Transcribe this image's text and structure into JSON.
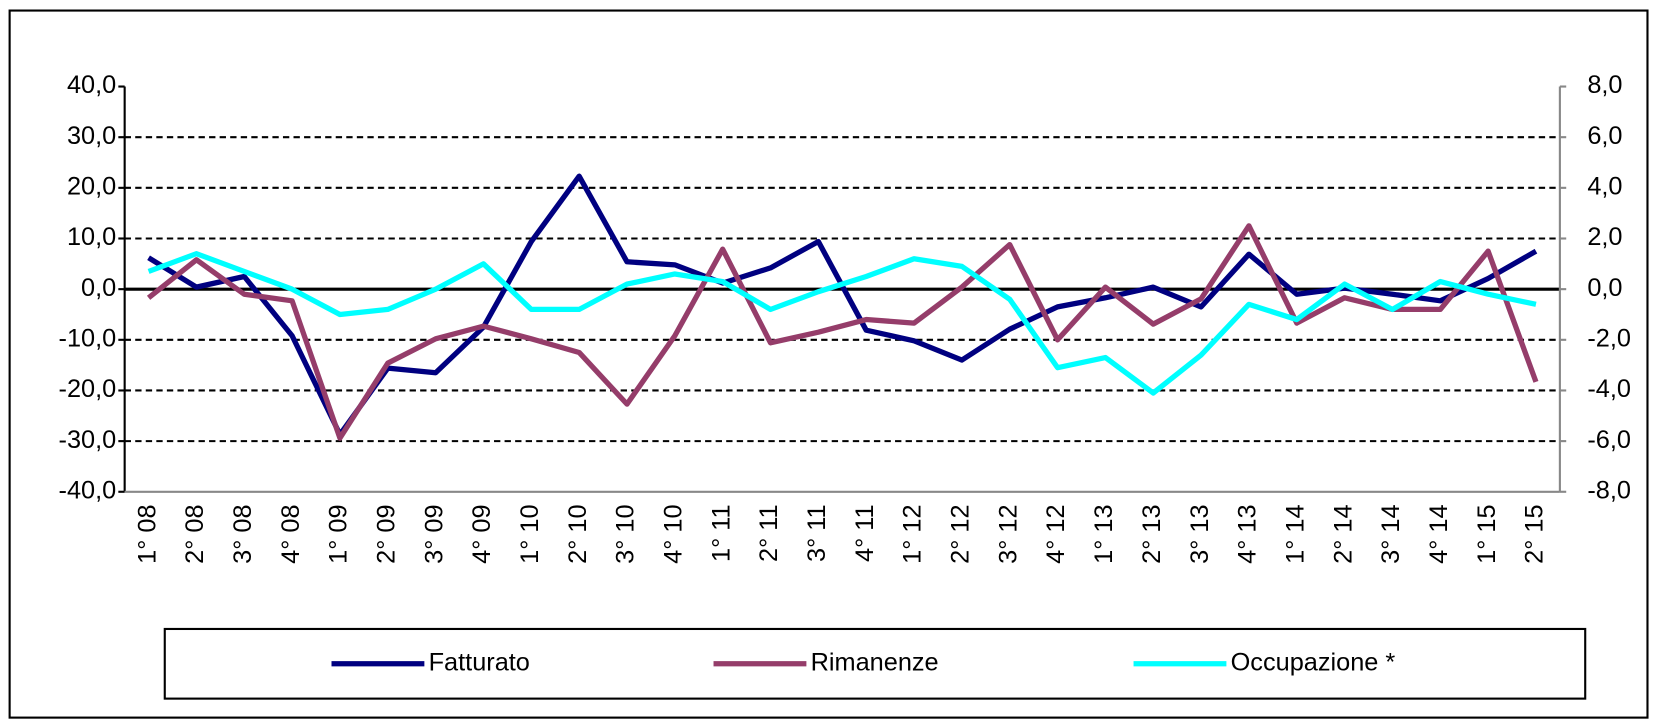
{
  "chart_data": {
    "type": "line",
    "categories": [
      "1° 08",
      "2° 08",
      "3° 08",
      "4° 08",
      "1° 09",
      "2° 09",
      "3° 09",
      "4° 09",
      "1° 10",
      "2° 10",
      "3° 10",
      "4° 10",
      "1° 11",
      "2° 11",
      "3° 11",
      "4° 11",
      "1° 12",
      "2° 12",
      "3° 12",
      "4° 12",
      "1° 13",
      "2° 13",
      "3° 13",
      "4° 13",
      "1° 14",
      "2° 14",
      "3° 14",
      "4° 14",
      "1° 15",
      "2° 15"
    ],
    "series": [
      {
        "name": "Fatturato",
        "color": "#000080",
        "values": [
          6.2,
          0.4,
          2.5,
          -9.2,
          -28.7,
          -15.6,
          -16.5,
          -7.5,
          9.4,
          22.3,
          5.4,
          4.8,
          1.2,
          4.2,
          9.4,
          -8.1,
          -10.2,
          -14,
          -7.9,
          -3.5,
          -1.7,
          0.4,
          -3.5,
          6.9,
          -1,
          0.2,
          -1,
          -2.3,
          2.1,
          7.5
        ]
      },
      {
        "name": "Rimanenze",
        "color": "#953d6a",
        "values": [
          -1.7,
          5.8,
          -1,
          -2.3,
          -29.4,
          -14.6,
          -9.8,
          -7.3,
          -9.8,
          -12.5,
          -22.7,
          -9.2,
          7.9,
          -10.6,
          -8.5,
          -6,
          -6.7,
          0.4,
          8.8,
          -10,
          0.4,
          -6.9,
          -1.9,
          12.5,
          -6.7,
          -1.7,
          -4,
          -4,
          7.5,
          -18.3
        ]
      },
      {
        "name": "Occupazione *",
        "color": "#00ffff",
        "axis": "y2",
        "values": [
          0.7,
          1.4,
          0.7,
          0,
          -1,
          -0.8,
          0,
          1,
          -0.8,
          -0.8,
          0.2,
          0.6,
          0.3,
          -0.8,
          -0.1,
          0.5,
          1.2,
          0.9,
          -0.4,
          -3.1,
          -2.7,
          -4.1,
          -2.6,
          -0.6,
          -1.2,
          0.2,
          -0.8,
          0.3,
          -0.2,
          -0.6
        ]
      }
    ],
    "ylim": [
      -40,
      40
    ],
    "yticks": [
      {
        "value": -40,
        "label": "-40,0"
      },
      {
        "value": -30,
        "label": "-30,0"
      },
      {
        "value": -20,
        "label": "-20,0"
      },
      {
        "value": -10,
        "label": "-10,0"
      },
      {
        "value": 0,
        "label": "0,0"
      },
      {
        "value": 10,
        "label": "10,0"
      },
      {
        "value": 20,
        "label": "20,0"
      },
      {
        "value": 30,
        "label": "30,0"
      },
      {
        "value": 40,
        "label": "40,0"
      }
    ],
    "y2lim": [
      -8,
      8
    ],
    "y2ticks": [
      {
        "value": -8,
        "label": "-8,0"
      },
      {
        "value": -6,
        "label": "-6,0"
      },
      {
        "value": -4,
        "label": "-4,0"
      },
      {
        "value": -2,
        "label": "-2,0"
      },
      {
        "value": 0,
        "label": "0,0"
      },
      {
        "value": 2,
        "label": "2,0"
      },
      {
        "value": 4,
        "label": "4,0"
      },
      {
        "value": 6,
        "label": "6,0"
      },
      {
        "value": 8,
        "label": "8,0"
      }
    ],
    "grid": true,
    "legend": "bottom"
  }
}
